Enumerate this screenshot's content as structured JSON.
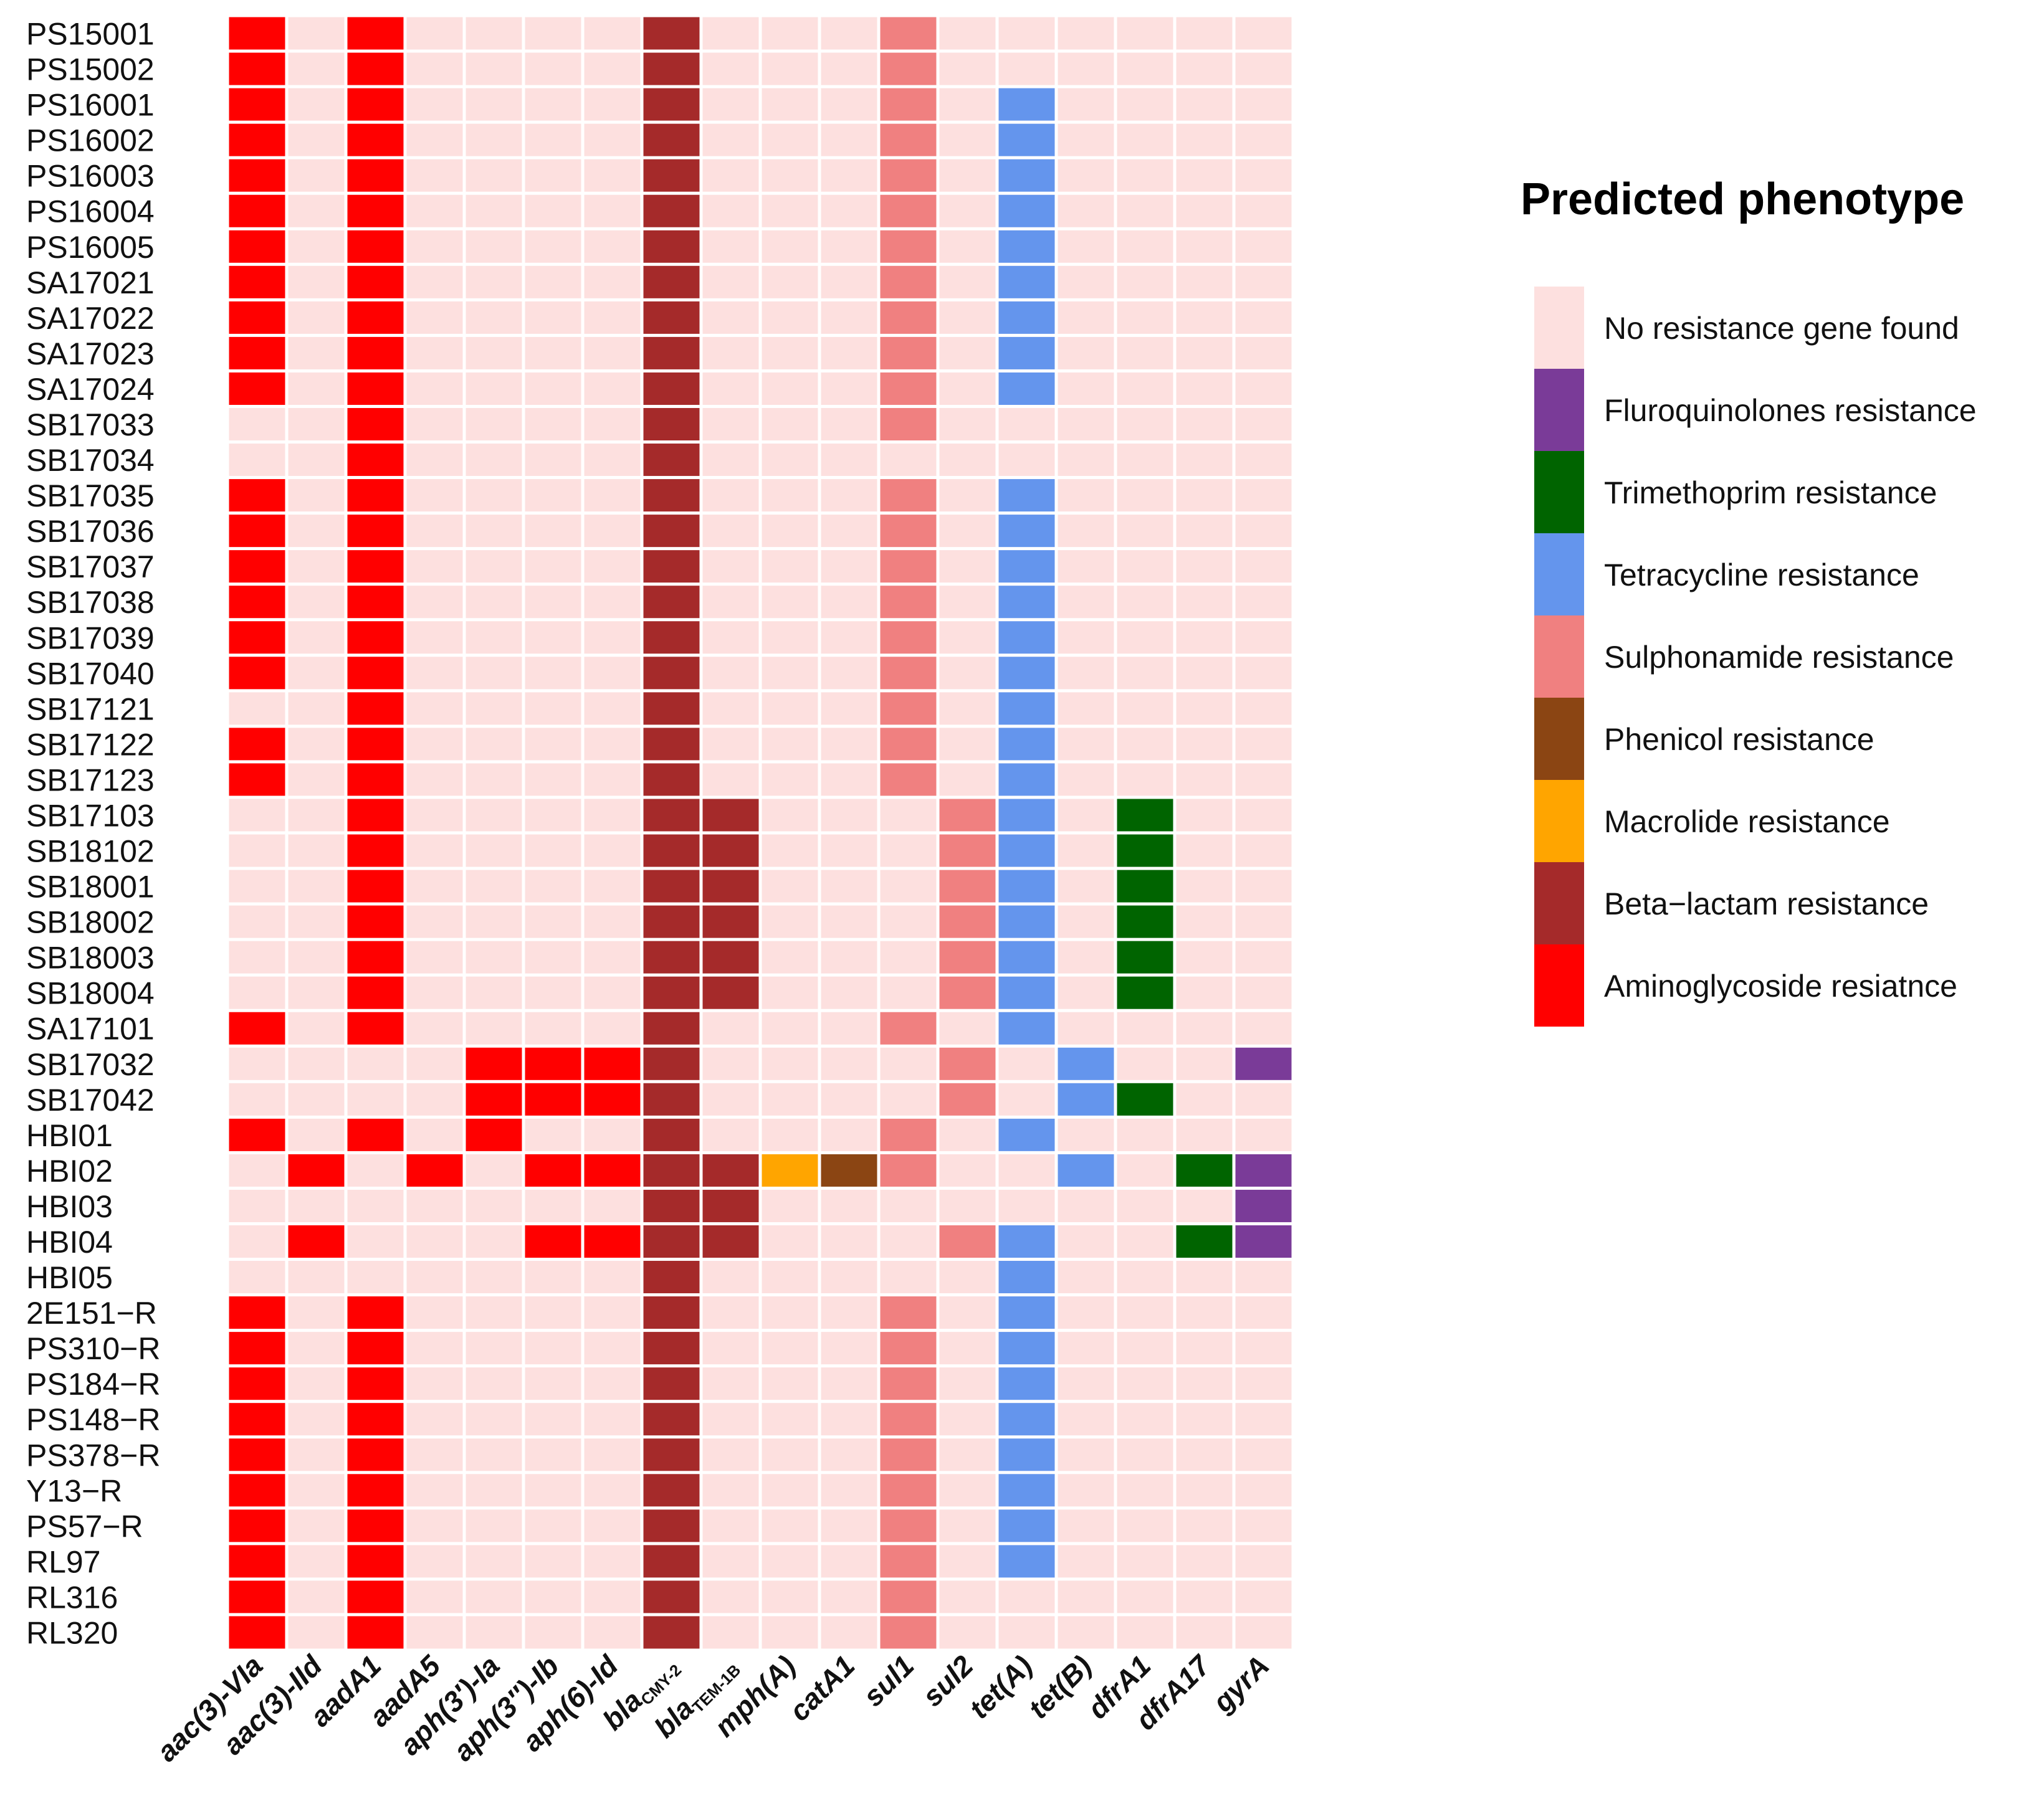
{
  "chart_data": {
    "type": "heatmap",
    "title": "",
    "legend": {
      "title": "Predicted phenotype",
      "placement": "right",
      "items": [
        {
          "key": "none",
          "label": "No resistance gene found",
          "color": "#fde0df"
        },
        {
          "key": "fluoro",
          "label": "Fluroquinolones resistance",
          "color": "#7a3b98"
        },
        {
          "key": "trimeth",
          "label": "Trimethoprim resistance",
          "color": "#006400"
        },
        {
          "key": "tetra",
          "label": "Tetracycline resistance",
          "color": "#6495ed"
        },
        {
          "key": "sulph",
          "label": "Sulphonamide resistance",
          "color": "#f08080"
        },
        {
          "key": "phenicol",
          "label": "Phenicol resistance",
          "color": "#8b4513"
        },
        {
          "key": "macrolide",
          "label": "Macrolide resistance",
          "color": "#ffa500"
        },
        {
          "key": "beta",
          "label": "Beta−lactam resistance",
          "color": "#a52a2a"
        },
        {
          "key": "amino",
          "label": "Aminoglycoside resiatnce",
          "color": "#ff0000"
        }
      ]
    },
    "columns": [
      {
        "main": "aac(3)-VIa",
        "sub": "",
        "category": "amino"
      },
      {
        "main": "aac(3)-IId",
        "sub": "",
        "category": "amino"
      },
      {
        "main": "aadA1",
        "sub": "",
        "category": "amino"
      },
      {
        "main": "aadA5",
        "sub": "",
        "category": "amino"
      },
      {
        "main": "aph(3′)-Ia",
        "sub": "",
        "category": "amino"
      },
      {
        "main": "aph(3″)-Ib",
        "sub": "",
        "category": "amino"
      },
      {
        "main": "aph(6)-Id",
        "sub": "",
        "category": "amino"
      },
      {
        "main": "bla",
        "sub": "CMY-2",
        "category": "beta"
      },
      {
        "main": "bla",
        "sub": "TEM-1B",
        "category": "beta"
      },
      {
        "main": "mph(A)",
        "sub": "",
        "category": "macrolide"
      },
      {
        "main": "catA1",
        "sub": "",
        "category": "phenicol"
      },
      {
        "main": "sul1",
        "sub": "",
        "category": "sulph"
      },
      {
        "main": "sul2",
        "sub": "",
        "category": "sulph"
      },
      {
        "main": "tet(A)",
        "sub": "",
        "category": "tetra"
      },
      {
        "main": "tet(B)",
        "sub": "",
        "category": "tetra"
      },
      {
        "main": "dfrA1",
        "sub": "",
        "category": "trimeth"
      },
      {
        "main": "dfrA17",
        "sub": "",
        "category": "trimeth"
      },
      {
        "main": "gyrA",
        "sub": "",
        "category": "fluoro"
      }
    ],
    "rows": [
      {
        "label": "PS15001",
        "present": [
          0,
          2,
          7,
          11
        ]
      },
      {
        "label": "PS15002",
        "present": [
          0,
          2,
          7,
          11
        ]
      },
      {
        "label": "PS16001",
        "present": [
          0,
          2,
          7,
          11,
          13
        ]
      },
      {
        "label": "PS16002",
        "present": [
          0,
          2,
          7,
          11,
          13
        ]
      },
      {
        "label": "PS16003",
        "present": [
          0,
          2,
          7,
          11,
          13
        ]
      },
      {
        "label": "PS16004",
        "present": [
          0,
          2,
          7,
          11,
          13
        ]
      },
      {
        "label": "PS16005",
        "present": [
          0,
          2,
          7,
          11,
          13
        ]
      },
      {
        "label": "SA17021",
        "present": [
          0,
          2,
          7,
          11,
          13
        ]
      },
      {
        "label": "SA17022",
        "present": [
          0,
          2,
          7,
          11,
          13
        ]
      },
      {
        "label": "SA17023",
        "present": [
          0,
          2,
          7,
          11,
          13
        ]
      },
      {
        "label": "SA17024",
        "present": [
          0,
          2,
          7,
          11,
          13
        ]
      },
      {
        "label": "SB17033",
        "present": [
          2,
          7,
          11
        ]
      },
      {
        "label": "SB17034",
        "present": [
          2,
          7
        ]
      },
      {
        "label": "SB17035",
        "present": [
          0,
          2,
          7,
          11,
          13
        ]
      },
      {
        "label": "SB17036",
        "present": [
          0,
          2,
          7,
          11,
          13
        ]
      },
      {
        "label": "SB17037",
        "present": [
          0,
          2,
          7,
          11,
          13
        ]
      },
      {
        "label": "SB17038",
        "present": [
          0,
          2,
          7,
          11,
          13
        ]
      },
      {
        "label": "SB17039",
        "present": [
          0,
          2,
          7,
          11,
          13
        ]
      },
      {
        "label": "SB17040",
        "present": [
          0,
          2,
          7,
          11,
          13
        ]
      },
      {
        "label": "SB17121",
        "present": [
          2,
          7,
          11,
          13
        ]
      },
      {
        "label": "SB17122",
        "present": [
          0,
          2,
          7,
          11,
          13
        ]
      },
      {
        "label": "SB17123",
        "present": [
          0,
          2,
          7,
          11,
          13
        ]
      },
      {
        "label": "SB17103",
        "present": [
          2,
          7,
          8,
          12,
          13,
          15
        ]
      },
      {
        "label": "SB18102",
        "present": [
          2,
          7,
          8,
          12,
          13,
          15
        ]
      },
      {
        "label": "SB18001",
        "present": [
          2,
          7,
          8,
          12,
          13,
          15
        ]
      },
      {
        "label": "SB18002",
        "present": [
          2,
          7,
          8,
          12,
          13,
          15
        ]
      },
      {
        "label": "SB18003",
        "present": [
          2,
          7,
          8,
          12,
          13,
          15
        ]
      },
      {
        "label": "SB18004",
        "present": [
          2,
          7,
          8,
          12,
          13,
          15
        ]
      },
      {
        "label": "SA17101",
        "present": [
          0,
          2,
          7,
          11,
          13
        ]
      },
      {
        "label": "SB17032",
        "present": [
          4,
          5,
          6,
          7,
          12,
          14,
          17
        ]
      },
      {
        "label": "SB17042",
        "present": [
          4,
          5,
          6,
          7,
          12,
          14,
          15
        ]
      },
      {
        "label": "HBI01",
        "present": [
          0,
          2,
          4,
          7,
          11,
          13
        ]
      },
      {
        "label": "HBI02",
        "present": [
          1,
          3,
          5,
          6,
          7,
          8,
          9,
          10,
          11,
          14,
          16,
          17
        ]
      },
      {
        "label": "HBI03",
        "present": [
          7,
          8,
          17
        ]
      },
      {
        "label": "HBI04",
        "present": [
          1,
          5,
          6,
          7,
          8,
          12,
          13,
          16,
          17
        ]
      },
      {
        "label": "HBI05",
        "present": [
          7,
          13
        ]
      },
      {
        "label": "2E151−R",
        "present": [
          0,
          2,
          7,
          11,
          13
        ]
      },
      {
        "label": "PS310−R",
        "present": [
          0,
          2,
          7,
          11,
          13
        ]
      },
      {
        "label": "PS184−R",
        "present": [
          0,
          2,
          7,
          11,
          13
        ]
      },
      {
        "label": "PS148−R",
        "present": [
          0,
          2,
          7,
          11,
          13
        ]
      },
      {
        "label": "PS378−R",
        "present": [
          0,
          2,
          7,
          11,
          13
        ]
      },
      {
        "label": "Y13−R",
        "present": [
          0,
          2,
          7,
          11,
          13
        ]
      },
      {
        "label": "PS57−R",
        "present": [
          0,
          2,
          7,
          11,
          13
        ]
      },
      {
        "label": "RL97",
        "present": [
          0,
          2,
          7,
          11,
          13
        ]
      },
      {
        "label": "RL316",
        "present": [
          0,
          2,
          7,
          11
        ]
      },
      {
        "label": "RL320",
        "present": [
          0,
          2,
          7,
          11
        ]
      }
    ]
  }
}
